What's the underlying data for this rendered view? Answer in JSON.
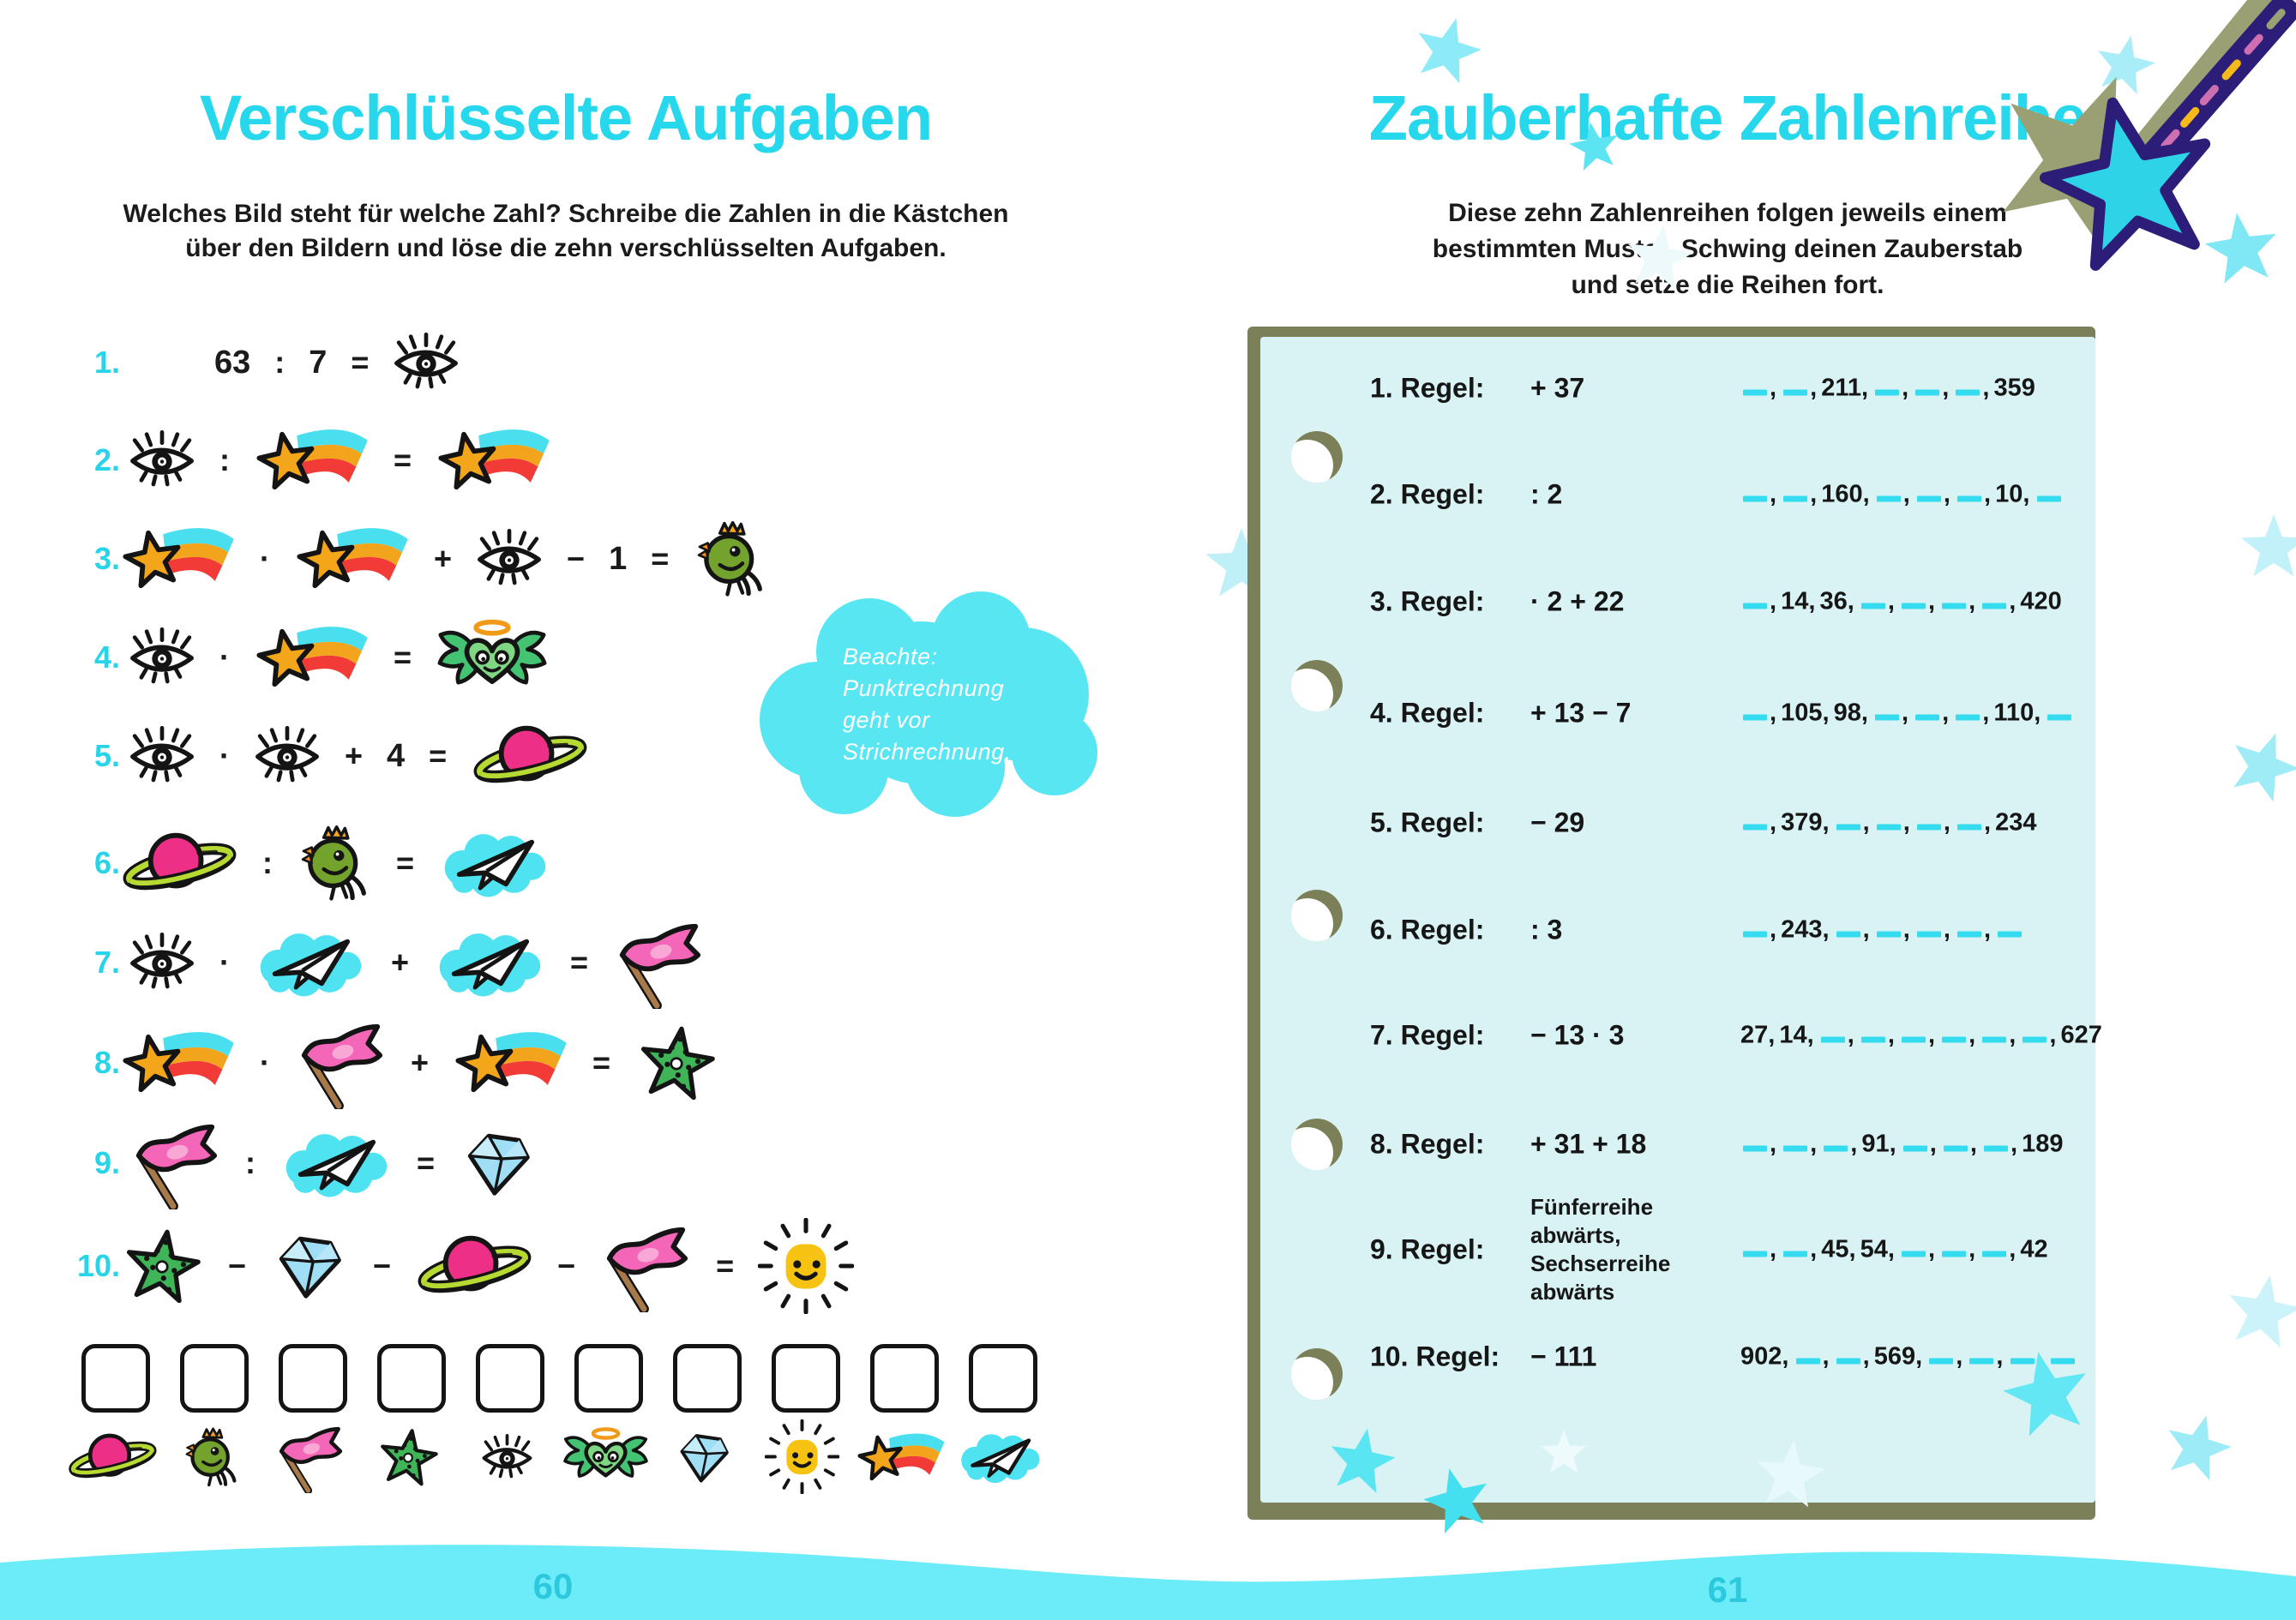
{
  "left_page": {
    "title": "Verschlüsselte Aufgaben",
    "instructions": [
      "Welches Bild steht für welche Zahl? Schreibe die Zahlen in die Kästchen",
      "über den Bildern und löse die zehn verschlüsselten Aufgaben."
    ],
    "note_cloud": [
      "Beachte:",
      "Punktrechnung",
      "geht vor",
      "Strichrechnung."
    ],
    "equations": [
      {
        "num": "1.",
        "tokens": [
          [
            "txt",
            "63"
          ],
          [
            "op",
            ":"
          ],
          [
            "txt",
            "7"
          ],
          [
            "op",
            "="
          ],
          [
            "icon",
            "eye"
          ]
        ]
      },
      {
        "num": "2.",
        "tokens": [
          [
            "icon",
            "eye"
          ],
          [
            "op",
            ":"
          ],
          [
            "icon",
            "shooting-star"
          ],
          [
            "op",
            "="
          ],
          [
            "icon",
            "shooting-star"
          ]
        ]
      },
      {
        "num": "3.",
        "tokens": [
          [
            "icon",
            "shooting-star"
          ],
          [
            "op",
            "·"
          ],
          [
            "icon",
            "shooting-star"
          ],
          [
            "op",
            "+"
          ],
          [
            "icon",
            "eye"
          ],
          [
            "op",
            "−"
          ],
          [
            "txt",
            "1"
          ],
          [
            "op",
            "="
          ],
          [
            "icon",
            "bird"
          ]
        ]
      },
      {
        "num": "4.",
        "tokens": [
          [
            "icon",
            "eye"
          ],
          [
            "op",
            "·"
          ],
          [
            "icon",
            "shooting-star"
          ],
          [
            "op",
            "="
          ],
          [
            "icon",
            "angel-heart"
          ]
        ]
      },
      {
        "num": "5.",
        "tokens": [
          [
            "icon",
            "eye"
          ],
          [
            "op",
            "·"
          ],
          [
            "icon",
            "eye"
          ],
          [
            "op",
            "+"
          ],
          [
            "txt",
            "4"
          ],
          [
            "op",
            "="
          ],
          [
            "icon",
            "planet"
          ]
        ]
      },
      {
        "num": "6.",
        "tokens": [
          [
            "icon",
            "planet"
          ],
          [
            "op",
            ":"
          ],
          [
            "icon",
            "bird"
          ],
          [
            "op",
            "="
          ],
          [
            "icon",
            "paper-plane"
          ]
        ]
      },
      {
        "num": "7.",
        "tokens": [
          [
            "icon",
            "eye"
          ],
          [
            "op",
            "·"
          ],
          [
            "icon",
            "paper-plane"
          ],
          [
            "op",
            "+"
          ],
          [
            "icon",
            "paper-plane"
          ],
          [
            "op",
            "="
          ],
          [
            "icon",
            "flag"
          ]
        ]
      },
      {
        "num": "8.",
        "tokens": [
          [
            "icon",
            "shooting-star"
          ],
          [
            "op",
            "·"
          ],
          [
            "icon",
            "flag"
          ],
          [
            "op",
            "+"
          ],
          [
            "icon",
            "shooting-star"
          ],
          [
            "op",
            "="
          ],
          [
            "icon",
            "starfish"
          ]
        ]
      },
      {
        "num": "9.",
        "tokens": [
          [
            "icon",
            "flag"
          ],
          [
            "op",
            ":"
          ],
          [
            "icon",
            "paper-plane"
          ],
          [
            "op",
            "="
          ],
          [
            "icon",
            "diamond"
          ]
        ]
      },
      {
        "num": "10.",
        "tokens": [
          [
            "icon",
            "starfish"
          ],
          [
            "op",
            "−"
          ],
          [
            "icon",
            "diamond"
          ],
          [
            "op",
            "−"
          ],
          [
            "icon",
            "planet"
          ],
          [
            "op",
            "−"
          ],
          [
            "icon",
            "flag"
          ],
          [
            "op",
            "="
          ],
          [
            "icon",
            "sun"
          ]
        ]
      }
    ],
    "answer_box_icons": [
      "planet",
      "bird",
      "flag",
      "starfish",
      "eye",
      "angel-heart",
      "diamond",
      "sun",
      "shooting-star",
      "paper-plane"
    ],
    "page_number": "60"
  },
  "right_page": {
    "title": "Zauberhafte Zahlenreihe",
    "instructions": [
      "Diese zehn Zahlenreihen folgen jeweils einem",
      "bestimmten Muster. Schwing deinen Zauberstab",
      "und setze die Reihen fort."
    ],
    "rules": [
      {
        "label": "1. Regel:",
        "rule": [
          "+ 37"
        ],
        "seq": [
          "_",
          "_",
          "211",
          "_",
          "_",
          "_",
          "359"
        ]
      },
      {
        "label": "2. Regel:",
        "rule": [
          ": 2"
        ],
        "seq": [
          "_",
          "_",
          "160",
          "_",
          "_",
          "_",
          "10",
          "_"
        ]
      },
      {
        "label": "3. Regel:",
        "rule": [
          "· 2 + 22"
        ],
        "seq": [
          "_",
          "14",
          "36",
          "_",
          "_",
          "_",
          "_",
          "420"
        ]
      },
      {
        "label": "4. Regel:",
        "rule": [
          "+ 13 − 7"
        ],
        "seq": [
          "_",
          "105",
          "98",
          "_",
          "_",
          "_",
          "110",
          "_"
        ]
      },
      {
        "label": "5. Regel:",
        "rule": [
          "− 29"
        ],
        "seq": [
          "_",
          "379",
          "_",
          "_",
          "_",
          "_",
          "234"
        ]
      },
      {
        "label": "6. Regel:",
        "rule": [
          ": 3"
        ],
        "seq": [
          "_",
          "243",
          "_",
          "_",
          "_",
          "_",
          "_"
        ]
      },
      {
        "label": "7. Regel:",
        "rule": [
          "− 13 · 3"
        ],
        "seq": [
          "27",
          "14",
          "_",
          "_",
          "_",
          "_",
          "_",
          "_",
          "627"
        ]
      },
      {
        "label": "8. Regel:",
        "rule": [
          "+ 31 + 18"
        ],
        "seq": [
          "_",
          "_",
          "_",
          "91",
          "_",
          "_",
          "_",
          "189"
        ]
      },
      {
        "label": "9. Regel:",
        "rule": [
          "Fünferreihe",
          "abwärts,",
          "Sechserreihe",
          "abwärts"
        ],
        "seq": [
          "_",
          "_",
          "45",
          "54",
          "_",
          "_",
          "_",
          "42"
        ]
      },
      {
        "label": "10. Regel:",
        "rule": [
          "− 111"
        ],
        "seq": [
          "902",
          "_",
          "_",
          "569",
          "_",
          "_",
          "_",
          "_"
        ]
      }
    ],
    "page_number": "61"
  },
  "colors": {
    "accent_cyan": "#27d7eb",
    "blank_cyan": "#35dbee",
    "panel_bg": "#d9f3f5",
    "panel_shadow_olive": "#7b8059",
    "wave_cyan": "#6cecf8",
    "page_number_cyan": "#2cc9de"
  }
}
